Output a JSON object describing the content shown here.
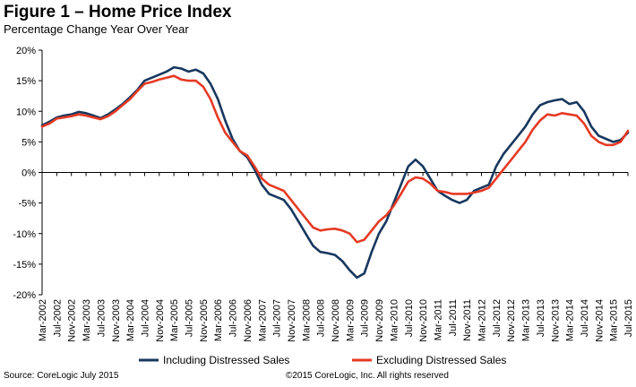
{
  "header": {
    "title": "Figure 1 – Home Price Index",
    "subtitle": "Percentage Change Year Over Year"
  },
  "footer": {
    "source": "Source: CoreLogic  July 2015",
    "copyright": "©2015 CoreLogic, Inc. All rights reserved"
  },
  "colors": {
    "including": "#17375E",
    "excluding": "#E53A24",
    "axis": "#000000",
    "zero_line": "#000000"
  },
  "chart_data": {
    "type": "line",
    "ylim": [
      -20,
      20
    ],
    "y_ticks": [
      -20,
      -15,
      -10,
      -5,
      0,
      5,
      10,
      15,
      20
    ],
    "y_tick_labels": [
      "-20%",
      "-15%",
      "-10%",
      "-5%",
      "0%",
      "5%",
      "10%",
      "15%",
      "20%"
    ],
    "x_range": [
      "Mar-2002",
      "Jul-2015"
    ],
    "x_tick_labels": [
      "Mar-2002",
      "Jul-2002",
      "Nov-2002",
      "Mar-2003",
      "Jul-2003",
      "Nov-2003",
      "Mar-2004",
      "Jul-2004",
      "Nov-2004",
      "Mar-2005",
      "Jul-2005",
      "Nov-2005",
      "Mar-2006",
      "Jul-2006",
      "Nov-2006",
      "Mar-2007",
      "Jul-2007",
      "Nov-2007",
      "Mar-2008",
      "Jul-2008",
      "Nov-2008",
      "Mar-2009",
      "Jul-2009",
      "Nov-2009",
      "Mar-2010",
      "Jul-2010",
      "Nov-2010",
      "Mar-2011",
      "Jul-2011",
      "Nov-2011",
      "Mar-2012",
      "Jul-2012",
      "Nov-2012",
      "Mar-2013",
      "Jul-2013",
      "Nov-2013",
      "Mar-2014",
      "Jul-2014",
      "Nov-2014",
      "Mar-2015",
      "Jul-2015"
    ],
    "legend_position": "bottom",
    "grid": false,
    "series": [
      {
        "name": "Including Distressed Sales",
        "color_key": "including",
        "points": [
          [
            "2002-03",
            7.7
          ],
          [
            "2002-05",
            8.3
          ],
          [
            "2002-07",
            9.0
          ],
          [
            "2002-09",
            9.3
          ],
          [
            "2002-11",
            9.5
          ],
          [
            "2003-01",
            9.9
          ],
          [
            "2003-03",
            9.7
          ],
          [
            "2003-05",
            9.3
          ],
          [
            "2003-07",
            8.9
          ],
          [
            "2003-09",
            9.5
          ],
          [
            "2003-11",
            10.3
          ],
          [
            "2004-01",
            11.2
          ],
          [
            "2004-03",
            12.3
          ],
          [
            "2004-05",
            13.5
          ],
          [
            "2004-07",
            15.0
          ],
          [
            "2004-09",
            15.5
          ],
          [
            "2004-11",
            16.0
          ],
          [
            "2005-01",
            16.5
          ],
          [
            "2005-03",
            17.2
          ],
          [
            "2005-05",
            17.0
          ],
          [
            "2005-07",
            16.5
          ],
          [
            "2005-09",
            16.8
          ],
          [
            "2005-11",
            16.2
          ],
          [
            "2006-01",
            14.5
          ],
          [
            "2006-03",
            12.0
          ],
          [
            "2006-05",
            8.5
          ],
          [
            "2006-07",
            5.5
          ],
          [
            "2006-09",
            3.5
          ],
          [
            "2006-11",
            2.5
          ],
          [
            "2007-01",
            0.5
          ],
          [
            "2007-03",
            -2.0
          ],
          [
            "2007-05",
            -3.5
          ],
          [
            "2007-07",
            -4.0
          ],
          [
            "2007-09",
            -4.5
          ],
          [
            "2007-11",
            -6.0
          ],
          [
            "2008-01",
            -8.0
          ],
          [
            "2008-03",
            -10.0
          ],
          [
            "2008-05",
            -12.0
          ],
          [
            "2008-07",
            -13.0
          ],
          [
            "2008-09",
            -13.2
          ],
          [
            "2008-11",
            -13.5
          ],
          [
            "2009-01",
            -14.5
          ],
          [
            "2009-03",
            -16.0
          ],
          [
            "2009-05",
            -17.2
          ],
          [
            "2009-07",
            -16.5
          ],
          [
            "2009-09",
            -13.0
          ],
          [
            "2009-11",
            -10.0
          ],
          [
            "2010-01",
            -8.0
          ],
          [
            "2010-03",
            -5.0
          ],
          [
            "2010-05",
            -2.0
          ],
          [
            "2010-07",
            1.0
          ],
          [
            "2010-09",
            2.1
          ],
          [
            "2010-11",
            1.0
          ],
          [
            "2011-01",
            -1.0
          ],
          [
            "2011-03",
            -3.0
          ],
          [
            "2011-05",
            -3.8
          ],
          [
            "2011-07",
            -4.5
          ],
          [
            "2011-09",
            -5.0
          ],
          [
            "2011-11",
            -4.5
          ],
          [
            "2012-01",
            -3.0
          ],
          [
            "2012-03",
            -2.5
          ],
          [
            "2012-05",
            -2.0
          ],
          [
            "2012-07",
            1.0
          ],
          [
            "2012-09",
            3.0
          ],
          [
            "2012-11",
            4.5
          ],
          [
            "2013-01",
            6.0
          ],
          [
            "2013-03",
            7.5
          ],
          [
            "2013-05",
            9.5
          ],
          [
            "2013-07",
            11.0
          ],
          [
            "2013-09",
            11.5
          ],
          [
            "2013-11",
            11.8
          ],
          [
            "2014-01",
            12.0
          ],
          [
            "2014-03",
            11.2
          ],
          [
            "2014-05",
            11.5
          ],
          [
            "2014-07",
            10.0
          ],
          [
            "2014-09",
            7.5
          ],
          [
            "2014-11",
            6.0
          ],
          [
            "2015-01",
            5.5
          ],
          [
            "2015-03",
            5.0
          ],
          [
            "2015-05",
            5.3
          ],
          [
            "2015-07",
            6.5
          ]
        ]
      },
      {
        "name": "Excluding Distressed Sales",
        "color_key": "excluding",
        "points": [
          [
            "2002-03",
            7.5
          ],
          [
            "2002-05",
            8.0
          ],
          [
            "2002-07",
            8.8
          ],
          [
            "2002-09",
            9.0
          ],
          [
            "2002-11",
            9.2
          ],
          [
            "2003-01",
            9.5
          ],
          [
            "2003-03",
            9.3
          ],
          [
            "2003-05",
            9.0
          ],
          [
            "2003-07",
            8.7
          ],
          [
            "2003-09",
            9.2
          ],
          [
            "2003-11",
            10.0
          ],
          [
            "2004-01",
            11.0
          ],
          [
            "2004-03",
            12.0
          ],
          [
            "2004-05",
            13.3
          ],
          [
            "2004-07",
            14.5
          ],
          [
            "2004-09",
            14.8
          ],
          [
            "2004-11",
            15.2
          ],
          [
            "2005-01",
            15.5
          ],
          [
            "2005-03",
            15.8
          ],
          [
            "2005-05",
            15.2
          ],
          [
            "2005-07",
            15.0
          ],
          [
            "2005-09",
            15.0
          ],
          [
            "2005-11",
            14.0
          ],
          [
            "2006-01",
            12.0
          ],
          [
            "2006-03",
            9.0
          ],
          [
            "2006-05",
            6.5
          ],
          [
            "2006-07",
            5.0
          ],
          [
            "2006-09",
            3.5
          ],
          [
            "2006-11",
            2.8
          ],
          [
            "2007-01",
            1.0
          ],
          [
            "2007-03",
            -1.0
          ],
          [
            "2007-05",
            -2.0
          ],
          [
            "2007-07",
            -2.5
          ],
          [
            "2007-09",
            -3.0
          ],
          [
            "2007-11",
            -4.5
          ],
          [
            "2008-01",
            -6.0
          ],
          [
            "2008-03",
            -7.5
          ],
          [
            "2008-05",
            -9.0
          ],
          [
            "2008-07",
            -9.5
          ],
          [
            "2008-09",
            -9.3
          ],
          [
            "2008-11",
            -9.2
          ],
          [
            "2009-01",
            -9.5
          ],
          [
            "2009-03",
            -10.0
          ],
          [
            "2009-05",
            -11.4
          ],
          [
            "2009-07",
            -11.0
          ],
          [
            "2009-09",
            -9.5
          ],
          [
            "2009-11",
            -8.0
          ],
          [
            "2010-01",
            -7.0
          ],
          [
            "2010-03",
            -5.5
          ],
          [
            "2010-05",
            -3.5
          ],
          [
            "2010-07",
            -1.5
          ],
          [
            "2010-09",
            -0.8
          ],
          [
            "2010-11",
            -1.0
          ],
          [
            "2011-01",
            -1.8
          ],
          [
            "2011-03",
            -3.0
          ],
          [
            "2011-05",
            -3.2
          ],
          [
            "2011-07",
            -3.5
          ],
          [
            "2011-09",
            -3.5
          ],
          [
            "2011-11",
            -3.5
          ],
          [
            "2012-01",
            -3.3
          ],
          [
            "2012-03",
            -3.0
          ],
          [
            "2012-05",
            -2.5
          ],
          [
            "2012-07",
            -1.0
          ],
          [
            "2012-09",
            0.5
          ],
          [
            "2012-11",
            2.0
          ],
          [
            "2013-01",
            3.5
          ],
          [
            "2013-03",
            5.0
          ],
          [
            "2013-05",
            7.0
          ],
          [
            "2013-07",
            8.5
          ],
          [
            "2013-09",
            9.5
          ],
          [
            "2013-11",
            9.3
          ],
          [
            "2014-01",
            9.7
          ],
          [
            "2014-03",
            9.5
          ],
          [
            "2014-05",
            9.3
          ],
          [
            "2014-07",
            8.0
          ],
          [
            "2014-09",
            6.0
          ],
          [
            "2014-11",
            5.0
          ],
          [
            "2015-01",
            4.5
          ],
          [
            "2015-03",
            4.5
          ],
          [
            "2015-05",
            5.0
          ],
          [
            "2015-07",
            6.8
          ]
        ]
      }
    ]
  }
}
